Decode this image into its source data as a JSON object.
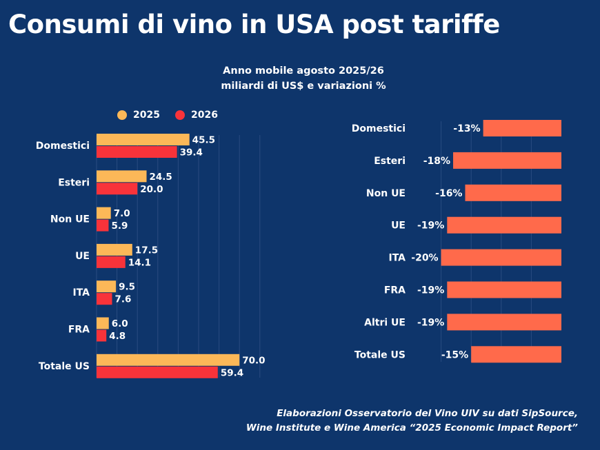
{
  "title": "Consumi di vino in USA post tariffe",
  "subtitle": [
    "Anno mobile agosto 2025/26",
    "miliardi di US$ e variazioni %"
  ],
  "footer": [
    "Elaborazioni Osservatorio del Vino UIV su dati SipSource,",
    "Wine Institute e Wine America “2025 Economic Impact Report”"
  ],
  "colors": {
    "background": "#0e356b",
    "series_2025": "#fcb858",
    "series_2026": "#f8333a",
    "variation": "#ff6a4b",
    "grid": "#2a4c80"
  },
  "chart_data": [
    {
      "type": "bar",
      "orientation": "horizontal",
      "title": "Anno mobile agosto 2025/26 — miliardi di US$",
      "categories": [
        "Domestici",
        "Esteri",
        "Non UE",
        "UE",
        "ITA",
        "FRA",
        "Totale US"
      ],
      "series": [
        {
          "name": "2025",
          "values": [
            45.5,
            24.5,
            7.0,
            17.5,
            9.5,
            6.0,
            70.0
          ],
          "labels": [
            "45.5",
            "24.5",
            "7.0",
            "17.5",
            "9.5",
            "6.0",
            "70.0"
          ]
        },
        {
          "name": "2026",
          "values": [
            39.4,
            20.0,
            5.9,
            14.1,
            7.6,
            4.8,
            59.4
          ],
          "labels": [
            "39.4",
            "20.0",
            "5.9",
            "14.1",
            "7.6",
            "4.8",
            "59.4"
          ]
        }
      ],
      "xlim": [
        0,
        80
      ],
      "grid": true,
      "legend": "top"
    },
    {
      "type": "bar",
      "orientation": "horizontal",
      "title": "variazioni %",
      "categories": [
        "Domestici",
        "Esteri",
        "Non UE",
        "UE",
        "ITA",
        "FRA",
        "Altri UE",
        "Totale US"
      ],
      "values": [
        -13,
        -18,
        -16,
        -19,
        -20,
        -19,
        -19,
        -15
      ],
      "labels": [
        "-13%",
        "-18%",
        "-16%",
        "-19%",
        "-20%",
        "-19%",
        "-19%",
        "-15%"
      ],
      "xlim": [
        -20,
        0
      ],
      "grid": true
    }
  ]
}
